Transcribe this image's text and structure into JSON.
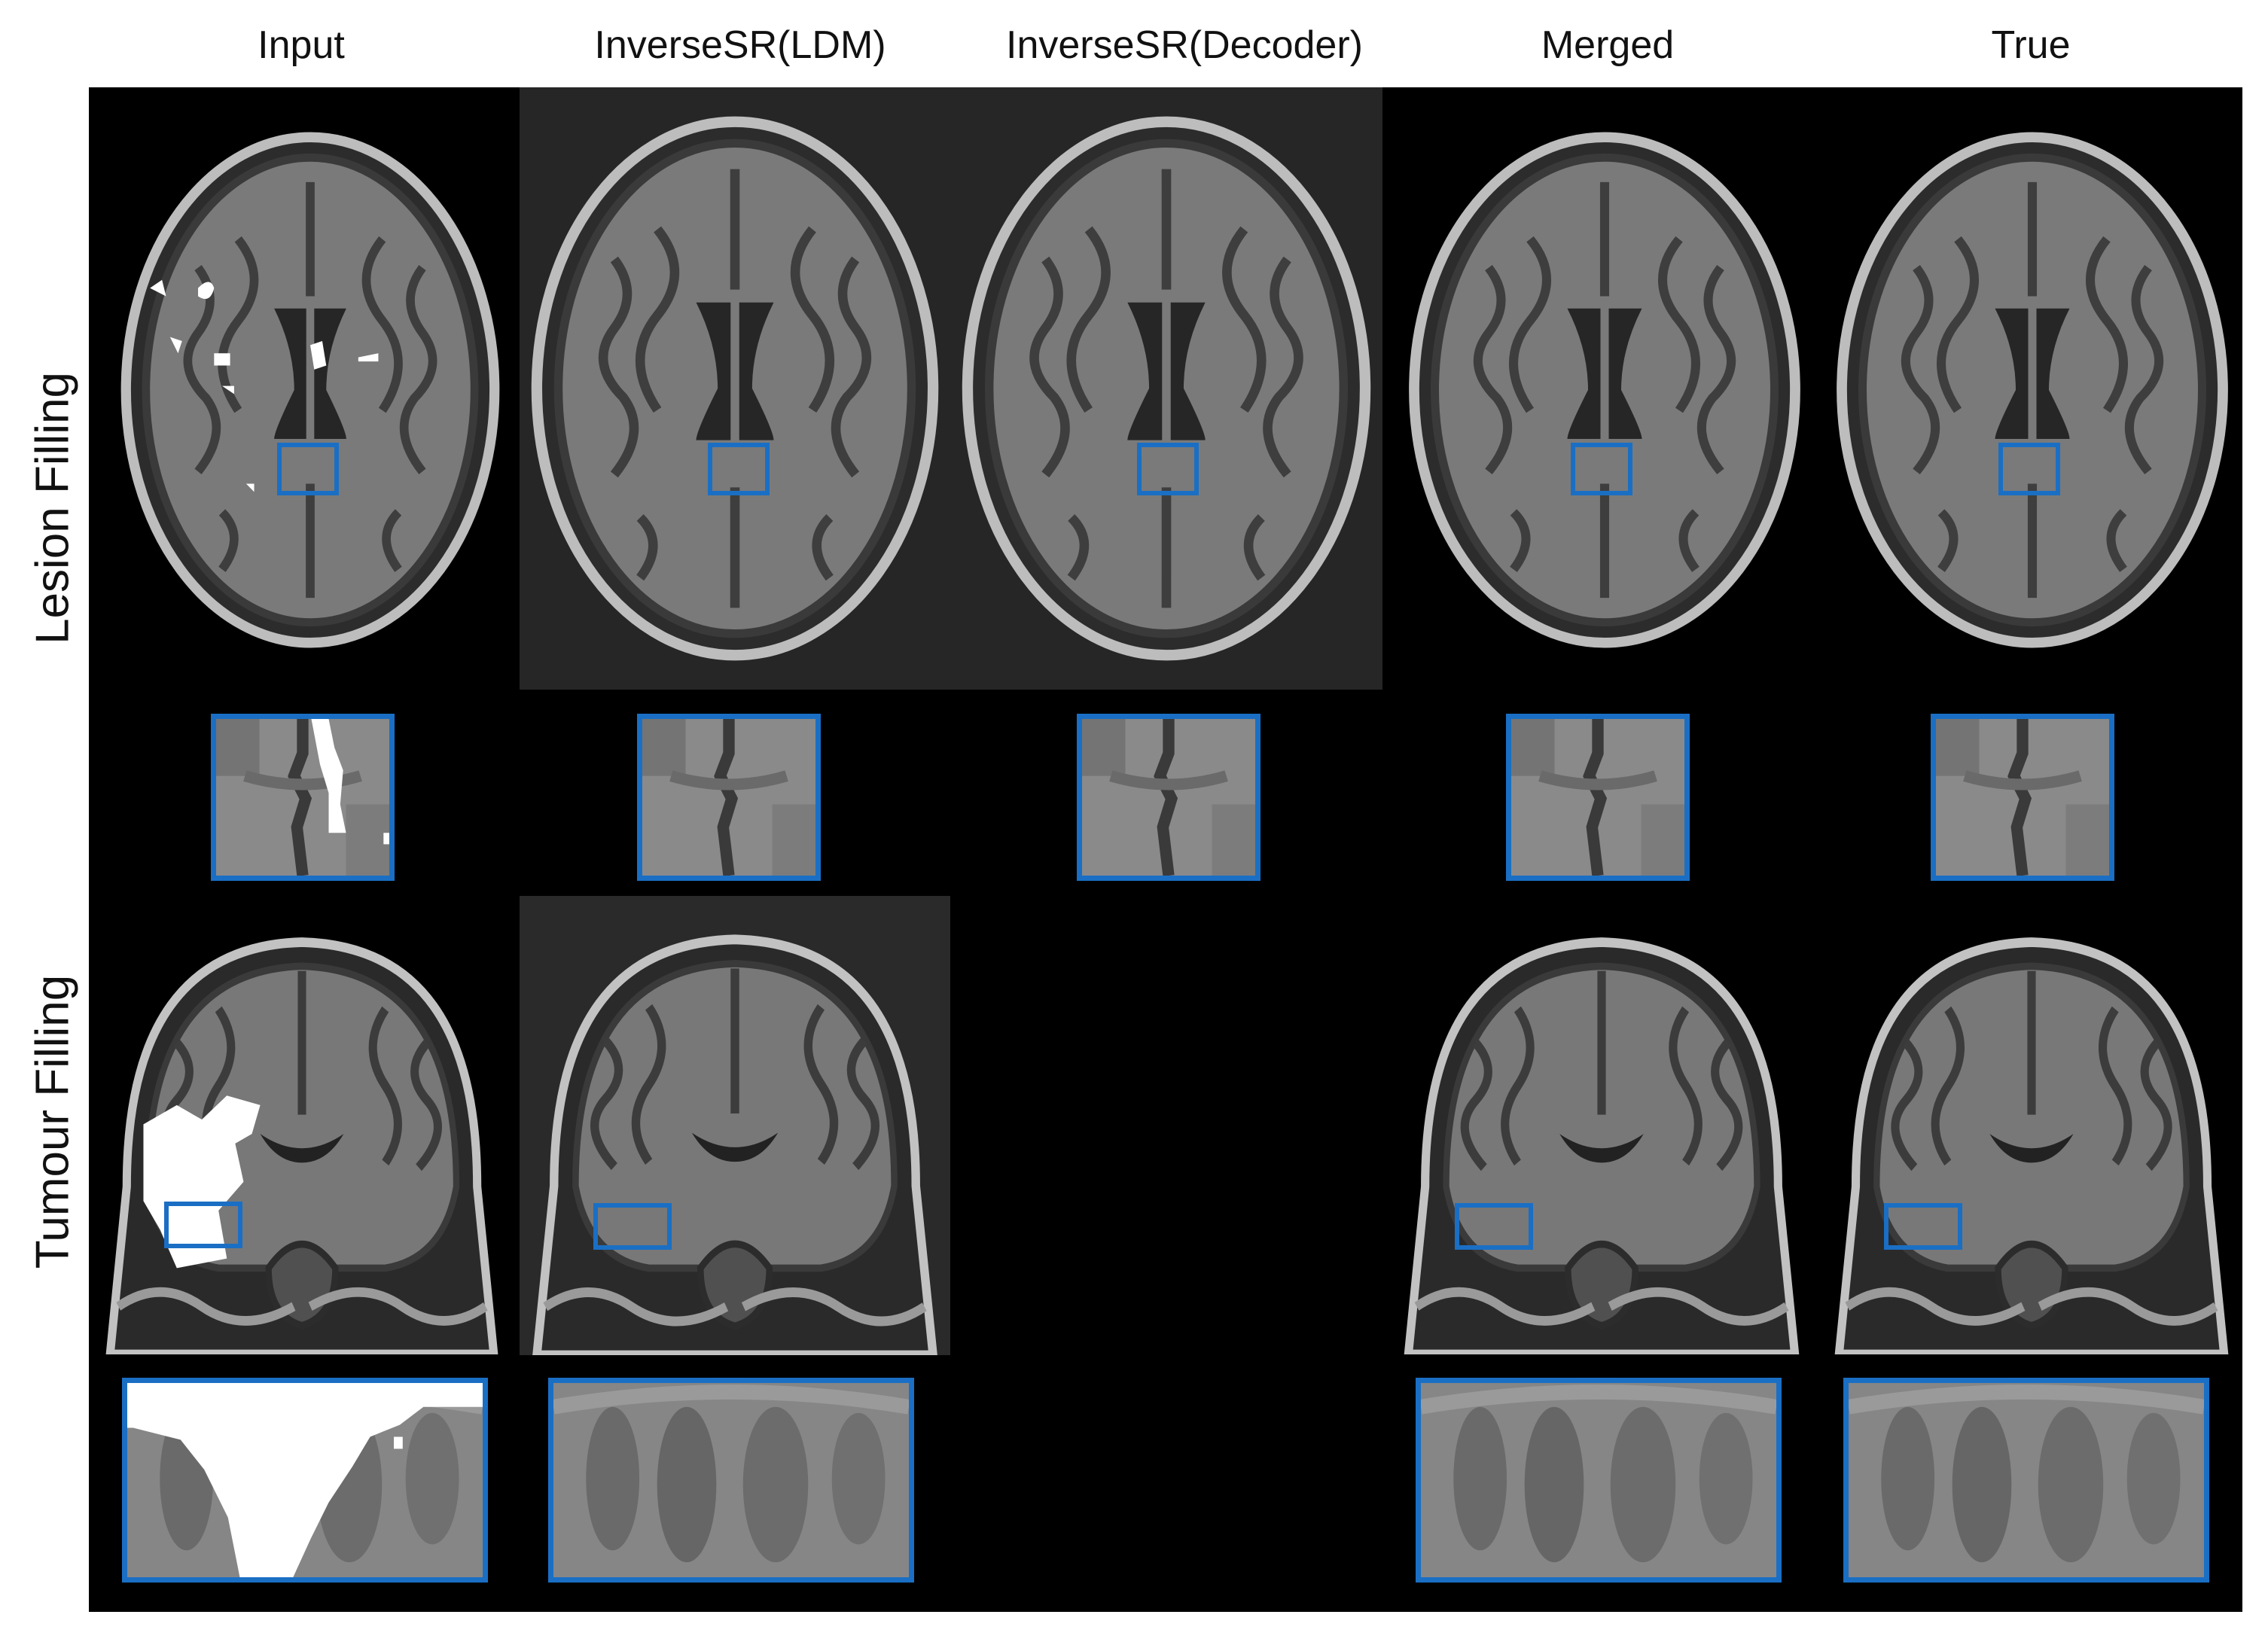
{
  "columns": [
    "Input",
    "InverseSR(LDM)",
    "InverseSR(Decoder)",
    "Merged",
    "True"
  ],
  "rows": [
    "Lesion Filling",
    "Tumour Filling"
  ],
  "colors": {
    "roi_box": "#1a6fc4",
    "panel_background": "#000000",
    "mask": "#ffffff"
  }
}
